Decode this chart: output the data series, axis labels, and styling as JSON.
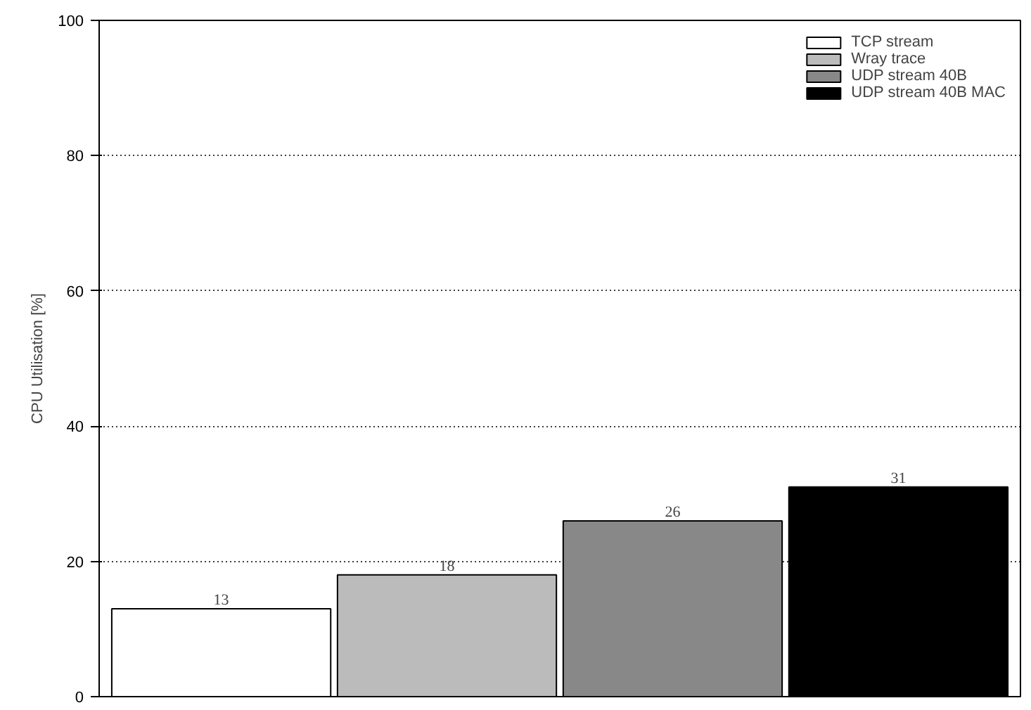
{
  "chart_data": {
    "type": "bar",
    "ylabel": "CPU Utilisation [%]",
    "categories": [
      null
    ],
    "series": [
      {
        "name": "TCP stream",
        "color": "#ffffff",
        "values": [
          13
        ]
      },
      {
        "name": "Wray trace",
        "color": "#bbbbbb",
        "values": [
          18
        ]
      },
      {
        "name": "UDP stream 40B",
        "color": "#888888",
        "values": [
          26
        ]
      },
      {
        "name": "UDP stream 40B MAC",
        "color": "#000000",
        "values": [
          31
        ]
      }
    ],
    "ylim": [
      0,
      100
    ],
    "yticks": [
      0,
      20,
      40,
      60,
      80,
      100
    ],
    "grid": "y",
    "legend": "top right",
    "data_labels": true,
    "tick_labels": "y"
  }
}
